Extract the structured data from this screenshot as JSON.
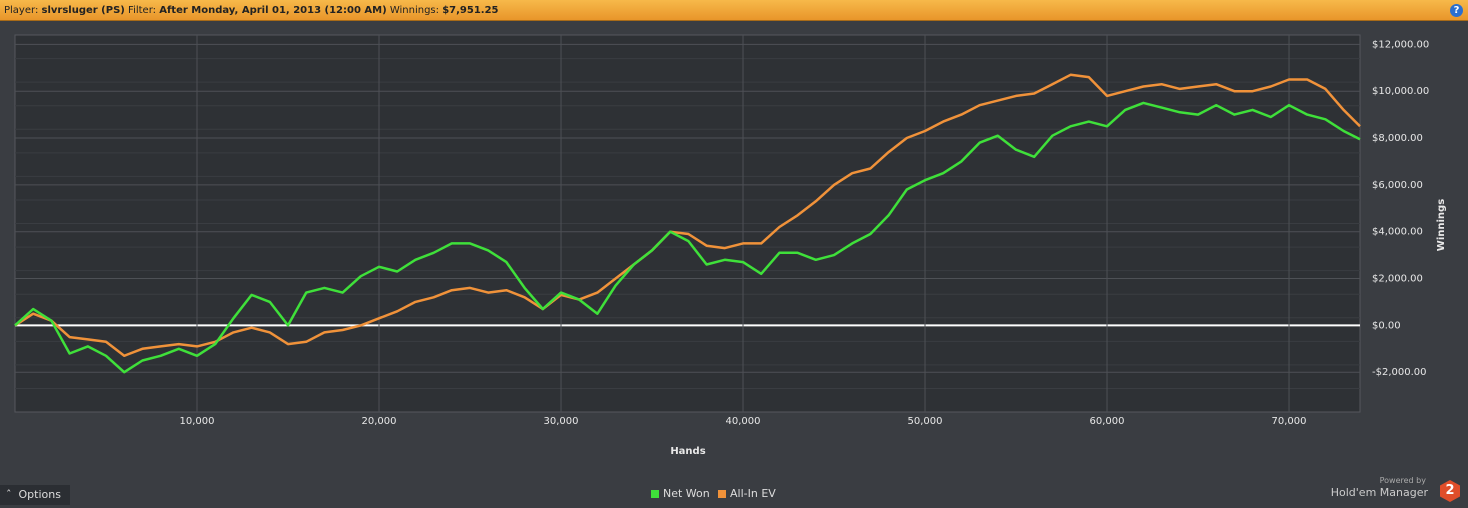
{
  "header": {
    "player_label": "Player:",
    "player": "slvrsluger (PS)",
    "filter_label": "Filter:",
    "filter": "After Monday, April 01, 2013 (12:00 AM)",
    "winnings_label": "Winnings:",
    "winnings": "$7,951.25"
  },
  "chart_data": {
    "type": "line",
    "x_label": "Hands",
    "y_label": "Winnings",
    "x": [
      0,
      1000,
      2000,
      3000,
      4000,
      5000,
      6000,
      7000,
      8000,
      9000,
      10000,
      11000,
      12000,
      13000,
      14000,
      15000,
      16000,
      17000,
      18000,
      19000,
      20000,
      21000,
      22000,
      23000,
      24000,
      25000,
      26000,
      27000,
      28000,
      29000,
      30000,
      31000,
      32000,
      33000,
      34000,
      35000,
      36000,
      37000,
      38000,
      39000,
      40000,
      41000,
      42000,
      43000,
      44000,
      45000,
      46000,
      47000,
      48000,
      49000,
      50000,
      51000,
      52000,
      53000,
      54000,
      55000,
      56000,
      57000,
      58000,
      59000,
      60000,
      61000,
      62000,
      63000,
      64000,
      65000,
      66000,
      67000,
      68000,
      69000,
      70000,
      71000,
      72000,
      73000,
      73900
    ],
    "series": [
      {
        "name": "Net Won",
        "color": "#3fe03a",
        "values": [
          0,
          700,
          200,
          -1200,
          -900,
          -1300,
          -2000,
          -1500,
          -1300,
          -1000,
          -1300,
          -800,
          300,
          1300,
          1000,
          0,
          1400,
          1600,
          1400,
          2100,
          2500,
          2300,
          2800,
          3100,
          3500,
          3500,
          3200,
          2700,
          1600,
          700,
          1400,
          1100,
          500,
          1700,
          2600,
          3200,
          4000,
          3600,
          2600,
          2800,
          2700,
          2200,
          3100,
          3100,
          2800,
          3000,
          3500,
          3900,
          4700,
          5800,
          6200,
          6500,
          7000,
          7800,
          8100,
          7500,
          7200,
          8100,
          8500,
          8700,
          8500,
          9200,
          9500,
          9300,
          9100,
          9000,
          9400,
          9000,
          9200,
          8900,
          9400,
          9000,
          8800,
          8300,
          7951.25
        ]
      },
      {
        "name": "All-In EV",
        "color": "#f0923a",
        "values": [
          0,
          500,
          200,
          -500,
          -600,
          -700,
          -1300,
          -1000,
          -900,
          -800,
          -900,
          -700,
          -300,
          -100,
          -300,
          -800,
          -700,
          -300,
          -200,
          0,
          300,
          600,
          1000,
          1200,
          1500,
          1600,
          1400,
          1500,
          1200,
          700,
          1300,
          1100,
          1400,
          2000,
          2600,
          3200,
          4000,
          3900,
          3400,
          3300,
          3500,
          3500,
          4200,
          4700,
          5300,
          6000,
          6500,
          6700,
          7400,
          8000,
          8300,
          8700,
          9000,
          9400,
          9600,
          9800,
          9900,
          10300,
          10700,
          10600,
          9800,
          10000,
          10200,
          10300,
          10100,
          10200,
          10300,
          10000,
          10000,
          10200,
          10500,
          10500,
          10100,
          9200,
          8500
        ]
      }
    ],
    "xlim": [
      0,
      73900
    ],
    "ylim": [
      -3700,
      12400
    ],
    "xticks": [
      {
        "value": 10000,
        "label": "10,000"
      },
      {
        "value": 20000,
        "label": "20,000"
      },
      {
        "value": 30000,
        "label": "30,000"
      },
      {
        "value": 40000,
        "label": "40,000"
      },
      {
        "value": 50000,
        "label": "50,000"
      },
      {
        "value": 60000,
        "label": "60,000"
      },
      {
        "value": 70000,
        "label": "70,000"
      }
    ],
    "yticks": [
      {
        "value": -2000,
        "label": "-$2,000.00"
      },
      {
        "value": 0,
        "label": "$0.00"
      },
      {
        "value": 2000,
        "label": "$2,000.00"
      },
      {
        "value": 4000,
        "label": "$4,000.00"
      },
      {
        "value": 6000,
        "label": "$6,000.00"
      },
      {
        "value": 8000,
        "label": "$8,000.00"
      },
      {
        "value": 10000,
        "label": "$10,000.00"
      },
      {
        "value": 12000,
        "label": "$12,000.00"
      }
    ],
    "grid": true
  },
  "footer": {
    "options": "Options",
    "powered_by": "Powered by",
    "brand": "Hold'em Manager",
    "version": "2"
  }
}
